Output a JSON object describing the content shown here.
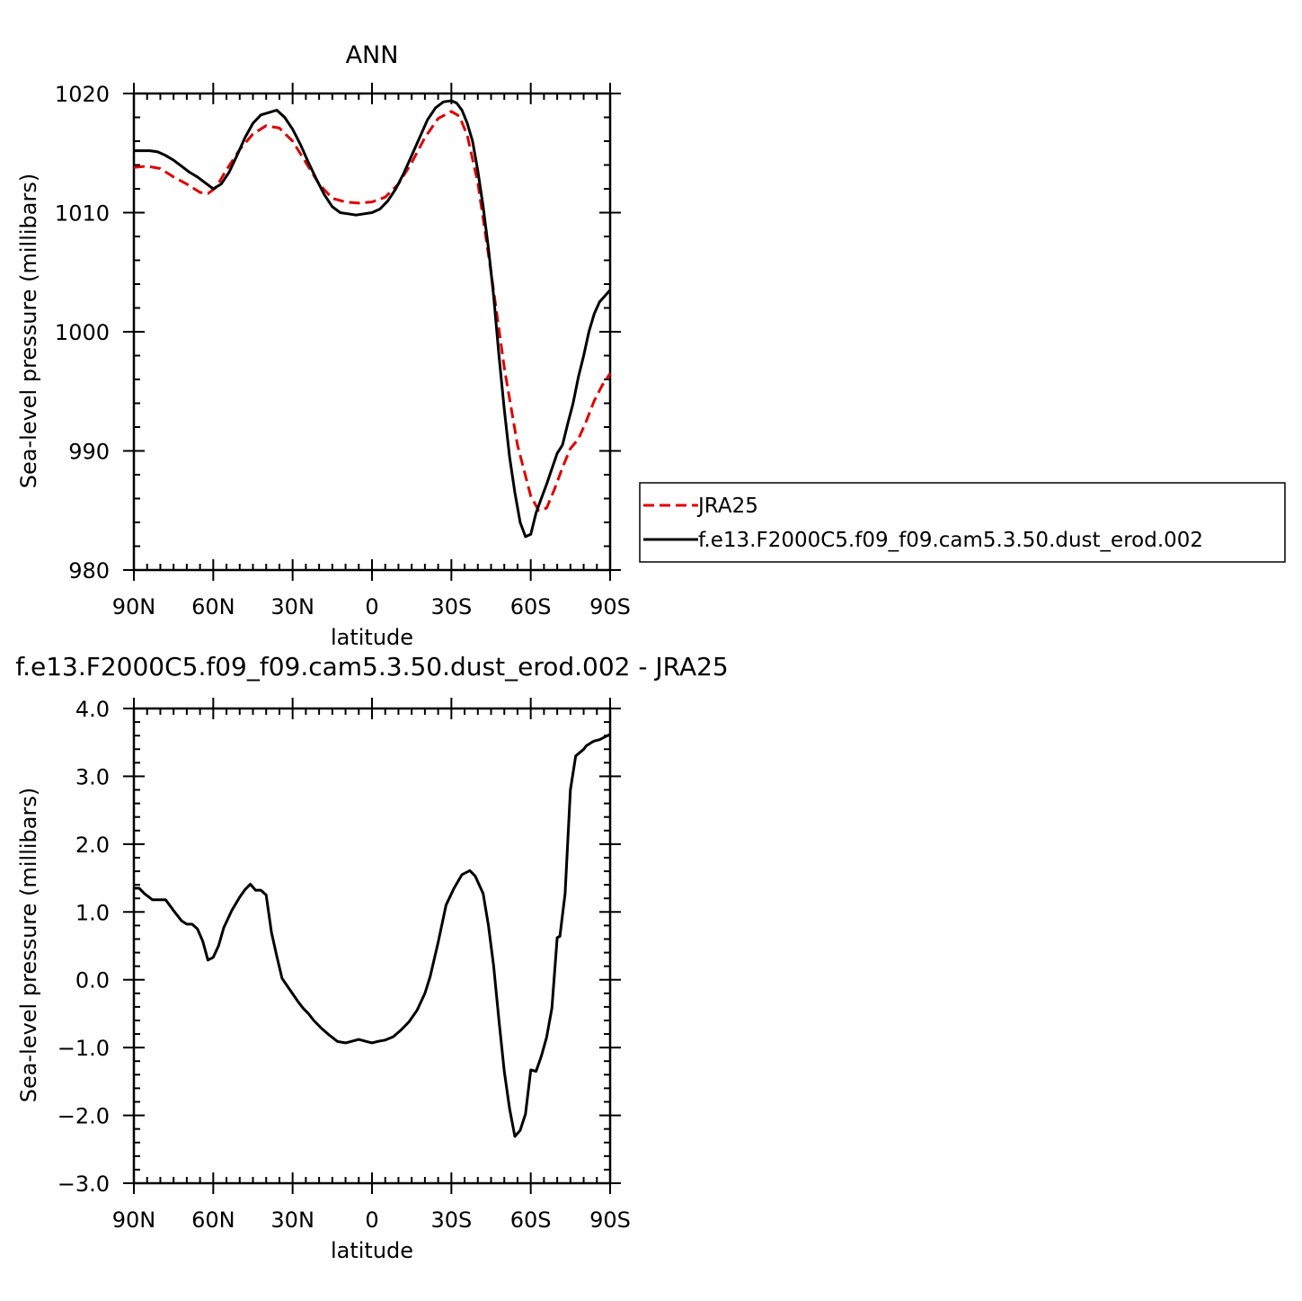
{
  "chart_data": [
    {
      "type": "line",
      "title": "ANN",
      "xlabel": "latitude",
      "ylabel": "Sea-level pressure (millibars)",
      "xlim": [
        90,
        -90
      ],
      "ylim": [
        980,
        1020
      ],
      "x_ticks": [
        {
          "value": 90,
          "label": "90N"
        },
        {
          "value": 60,
          "label": "60N"
        },
        {
          "value": 30,
          "label": "30N"
        },
        {
          "value": 0,
          "label": "0"
        },
        {
          "value": -30,
          "label": "30S"
        },
        {
          "value": -60,
          "label": "60S"
        },
        {
          "value": -90,
          "label": "90S"
        }
      ],
      "y_ticks": [
        {
          "value": 980,
          "label": "980"
        },
        {
          "value": 990,
          "label": "990"
        },
        {
          "value": 1000,
          "label": "1000"
        },
        {
          "value": 1010,
          "label": "1010"
        },
        {
          "value": 1020,
          "label": "1020"
        }
      ],
      "legend": "right",
      "series": [
        {
          "name": "JRA25",
          "color": "#e00000",
          "dash": true,
          "x": [
            90,
            85,
            80,
            75,
            70,
            65,
            62,
            59,
            55,
            50,
            45,
            40,
            35,
            30,
            25,
            20,
            15,
            10,
            5,
            0,
            -5,
            -10,
            -15,
            -20,
            -25,
            -30,
            -33,
            -36,
            -40,
            -45,
            -50,
            -55,
            -60,
            -63,
            -66,
            -69,
            -72,
            -75,
            -78,
            -81,
            -84,
            -87,
            -90
          ],
          "y": [
            1013.8,
            1013.9,
            1013.7,
            1013.0,
            1012.4,
            1011.7,
            1011.6,
            1012.1,
            1013.6,
            1015.3,
            1016.6,
            1017.3,
            1017.1,
            1016.0,
            1014.2,
            1012.4,
            1011.2,
            1010.9,
            1010.8,
            1010.9,
            1011.3,
            1012.4,
            1014.2,
            1016.3,
            1017.9,
            1018.5,
            1018.1,
            1016.5,
            1012.5,
            1005.0,
            997.0,
            990.5,
            986.2,
            985.0,
            985.2,
            986.8,
            988.6,
            990.2,
            991.0,
            992.5,
            994.2,
            995.5,
            996.5
          ]
        },
        {
          "name": "f.e13.F2000C5.f09_f09.cam5.3.50.dust_erod.002",
          "color": "#000000",
          "dash": false,
          "x": [
            90,
            87,
            84,
            81,
            78,
            75,
            72,
            69,
            66,
            63,
            60,
            57,
            54,
            51,
            48,
            45,
            42,
            39,
            36,
            33,
            30,
            27,
            24,
            21,
            18,
            15,
            12,
            9,
            6,
            3,
            0,
            -3,
            -6,
            -9,
            -12,
            -15,
            -18,
            -21,
            -24,
            -27,
            -30,
            -32,
            -34,
            -36,
            -38,
            -40,
            -42,
            -44,
            -46,
            -48,
            -50,
            -52,
            -54,
            -56,
            -58,
            -60,
            -62,
            -64,
            -66,
            -68,
            -70,
            -72,
            -74,
            -76,
            -78,
            -80,
            -82,
            -84,
            -86,
            -88,
            -90
          ],
          "y": [
            1015.2,
            1015.2,
            1015.2,
            1015.1,
            1014.8,
            1014.4,
            1013.9,
            1013.4,
            1013.0,
            1012.5,
            1012.0,
            1012.4,
            1013.4,
            1014.8,
            1016.3,
            1017.5,
            1018.2,
            1018.4,
            1018.6,
            1018.0,
            1017.0,
            1015.7,
            1014.2,
            1012.8,
            1011.5,
            1010.5,
            1010.0,
            1009.9,
            1009.8,
            1009.9,
            1010.0,
            1010.3,
            1011.0,
            1012.0,
            1013.3,
            1014.8,
            1016.3,
            1017.8,
            1018.8,
            1019.3,
            1019.4,
            1019.2,
            1018.6,
            1017.5,
            1016.0,
            1013.5,
            1010.5,
            1007.0,
            1003.0,
            998.0,
            993.5,
            989.5,
            986.5,
            984.0,
            982.8,
            983.0,
            984.8,
            986.0,
            987.2,
            988.5,
            989.8,
            990.5,
            992.3,
            994.0,
            996.2,
            998.0,
            1000.0,
            1001.5,
            1002.5,
            1003.0,
            1003.5
          ]
        }
      ]
    },
    {
      "type": "line",
      "title": "f.e13.F2000C5.f09_f09.cam5.3.50.dust_erod.002 - JRA25",
      "xlabel": "latitude",
      "ylabel": "Sea-level pressure (millibars)",
      "xlim": [
        90,
        -90
      ],
      "ylim": [
        -3.0,
        4.0
      ],
      "x_ticks": [
        {
          "value": 90,
          "label": "90N"
        },
        {
          "value": 60,
          "label": "60N"
        },
        {
          "value": 30,
          "label": "30N"
        },
        {
          "value": 0,
          "label": "0"
        },
        {
          "value": -30,
          "label": "30S"
        },
        {
          "value": -60,
          "label": "60S"
        },
        {
          "value": -90,
          "label": "90S"
        }
      ],
      "y_ticks": [
        {
          "value": -3.0,
          "label": "−3.0"
        },
        {
          "value": -2.0,
          "label": "−2.0"
        },
        {
          "value": -1.0,
          "label": "−1.0"
        },
        {
          "value": 0.0,
          "label": "0.0"
        },
        {
          "value": 1.0,
          "label": "1.0"
        },
        {
          "value": 2.0,
          "label": "2.0"
        },
        {
          "value": 3.0,
          "label": "3.0"
        },
        {
          "value": 4.0,
          "label": "4.0"
        }
      ],
      "series": [
        {
          "color": "#000000",
          "dash": false,
          "x": [
            90,
            88,
            86,
            83,
            80,
            78,
            75,
            72,
            70,
            68,
            66,
            64,
            62,
            60,
            58,
            56,
            53,
            50,
            48,
            46,
            44,
            42,
            40,
            38,
            36,
            34,
            31,
            28,
            26,
            24,
            22,
            19,
            16,
            13,
            10,
            8,
            5,
            2,
            0,
            -2,
            -5,
            -8,
            -11,
            -14,
            -17,
            -20,
            -22,
            -25,
            -28,
            -31,
            -34,
            -37,
            -39,
            -42,
            -44,
            -46,
            -48,
            -50,
            -52,
            -54,
            -56,
            -58,
            -60,
            -62,
            -64,
            -66,
            -68,
            -70,
            -71,
            -73,
            -75,
            -77,
            -80,
            -81,
            -83,
            -84,
            -86,
            -87,
            -88,
            -89,
            -90
          ],
          "y": [
            1.35,
            1.35,
            1.27,
            1.18,
            1.18,
            1.18,
            1.02,
            0.87,
            0.82,
            0.82,
            0.75,
            0.57,
            0.29,
            0.33,
            0.5,
            0.77,
            1.02,
            1.22,
            1.33,
            1.41,
            1.32,
            1.32,
            1.25,
            0.7,
            0.35,
            0.02,
            -0.15,
            -0.32,
            -0.42,
            -0.5,
            -0.6,
            -0.72,
            -0.82,
            -0.91,
            -0.93,
            -0.91,
            -0.88,
            -0.91,
            -0.93,
            -0.91,
            -0.89,
            -0.84,
            -0.74,
            -0.62,
            -0.45,
            -0.2,
            0.05,
            0.55,
            1.1,
            1.35,
            1.55,
            1.61,
            1.53,
            1.27,
            0.8,
            0.2,
            -0.6,
            -1.35,
            -1.9,
            -2.31,
            -2.22,
            -1.98,
            -1.33,
            -1.35,
            -1.13,
            -0.85,
            -0.42,
            0.62,
            0.64,
            1.27,
            2.8,
            3.3,
            3.4,
            3.45,
            3.5,
            3.52,
            3.54,
            3.56,
            3.58,
            3.6,
            3.62
          ]
        }
      ]
    }
  ]
}
